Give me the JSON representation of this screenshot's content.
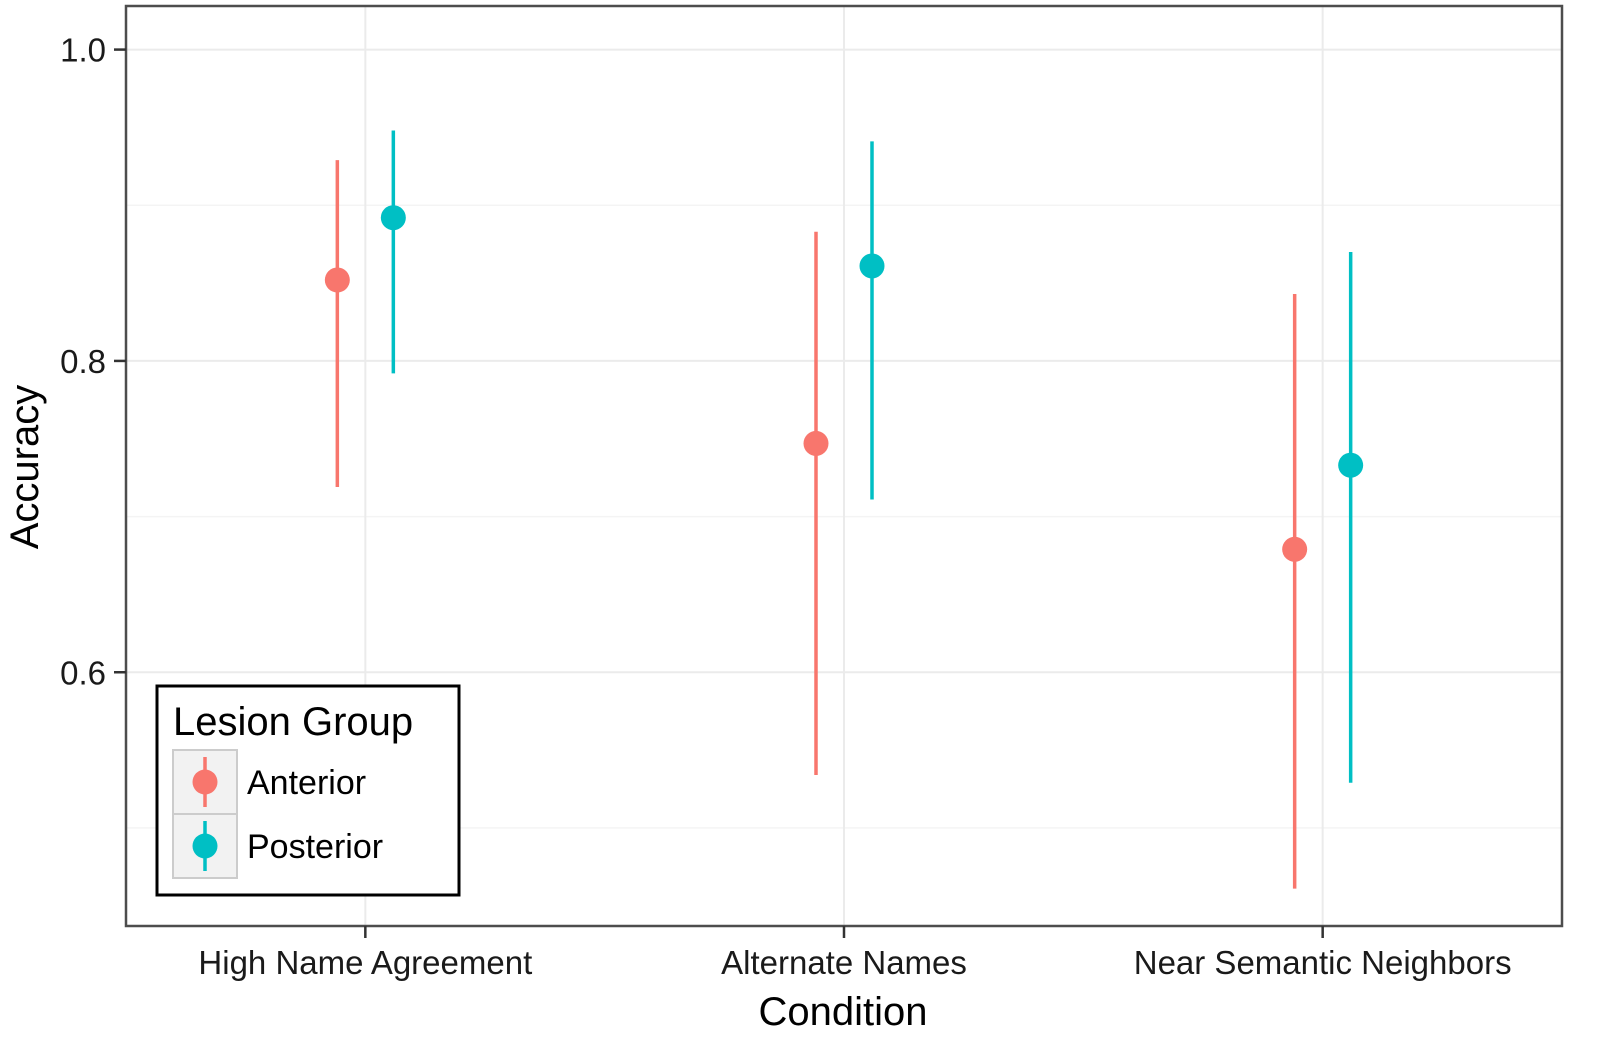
{
  "chart_data": {
    "type": "scatter",
    "subtype": "pointrange",
    "title": "",
    "xlabel": "Condition",
    "ylabel": "Accuracy",
    "categories": [
      "High Name Agreement",
      "Alternate Names",
      "Near Semantic Neighbors"
    ],
    "y_ticks": [
      "0.6",
      "0.8",
      "1.0"
    ],
    "y_tick_values": [
      0.6,
      0.8,
      1.0
    ],
    "ylim": [
      0.437,
      1.028
    ],
    "grid": true,
    "legend": {
      "title": "Lesion Group",
      "placement": "bottom-left"
    },
    "series": [
      {
        "name": "Anterior",
        "color": "#F8766D",
        "values": [
          0.852,
          0.747,
          0.679
        ],
        "lower": [
          0.719,
          0.534,
          0.461
        ],
        "upper": [
          0.929,
          0.883,
          0.843
        ]
      },
      {
        "name": "Posterior",
        "color": "#00BFC4",
        "values": [
          0.892,
          0.861,
          0.733
        ],
        "lower": [
          0.792,
          0.711,
          0.529
        ],
        "upper": [
          0.948,
          0.941,
          0.87
        ]
      }
    ]
  }
}
